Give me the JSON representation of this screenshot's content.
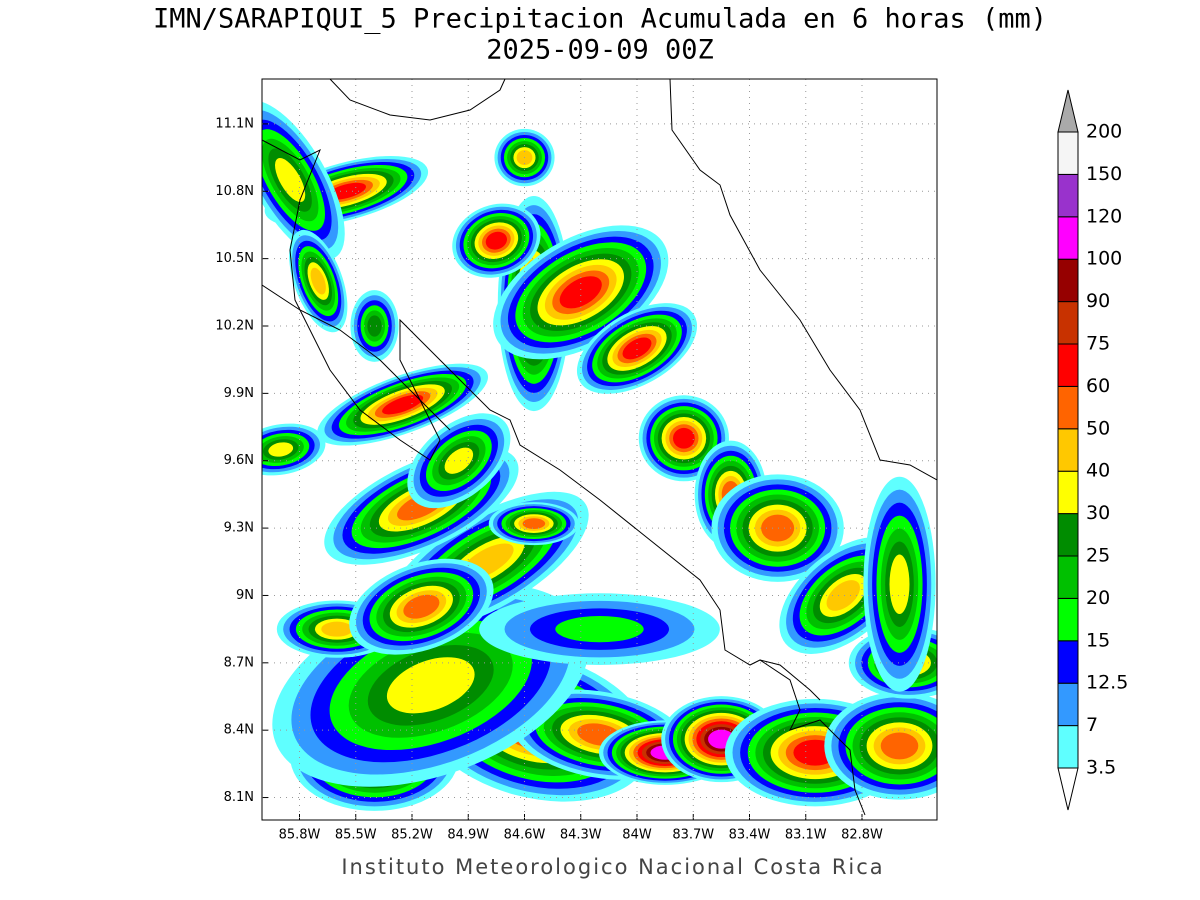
{
  "title": "IMN/SARAPIQUI_5 Precipitacion Acumulada en 6 horas (mm)",
  "subtitle": "2025-09-09 00Z",
  "map": {
    "lon_range": [
      -86.0,
      -82.4
    ],
    "lat_range": [
      8.0,
      11.3
    ],
    "lat_ticks": [
      {
        "value": 11.1,
        "label": "11.1N"
      },
      {
        "value": 10.8,
        "label": "10.8N"
      },
      {
        "value": 10.5,
        "label": "10.5N"
      },
      {
        "value": 10.2,
        "label": "10.2N"
      },
      {
        "value": 9.9,
        "label": "9.9N"
      },
      {
        "value": 9.6,
        "label": "9.6N"
      },
      {
        "value": 9.3,
        "label": "9.3N"
      },
      {
        "value": 9,
        "label": "9N"
      },
      {
        "value": 8.7,
        "label": "8.7N"
      },
      {
        "value": 8.4,
        "label": "8.4N"
      },
      {
        "value": 8.1,
        "label": "8.1N"
      }
    ],
    "lon_ticks": [
      {
        "value": -85.8,
        "label": "85.8W"
      },
      {
        "value": -85.5,
        "label": "85.5W"
      },
      {
        "value": -85.2,
        "label": "85.2W"
      },
      {
        "value": -84.9,
        "label": "84.9W"
      },
      {
        "value": -84.6,
        "label": "84.6W"
      },
      {
        "value": -84.3,
        "label": "84.3W"
      },
      {
        "value": -84,
        "label": "84W"
      },
      {
        "value": -83.7,
        "label": "83.7W"
      },
      {
        "value": -83.4,
        "label": "83.4W"
      },
      {
        "value": -83.1,
        "label": "83.1W"
      },
      {
        "value": -82.8,
        "label": "82.8W"
      }
    ],
    "grid": true
  },
  "colorbar": {
    "levels": [
      3.5,
      7,
      12.5,
      15,
      20,
      25,
      30,
      40,
      50,
      60,
      75,
      90,
      100,
      120,
      150,
      200
    ],
    "colors": [
      "#5fffff",
      "#3399ff",
      "#0000ff",
      "#00ff00",
      "#00c000",
      "#008c00",
      "#ffff00",
      "#ffc800",
      "#ff6400",
      "#ff0000",
      "#c83200",
      "#960000",
      "#ff00ff",
      "#9932cc",
      "#f5f5f5"
    ],
    "under_color": "#ffffff",
    "over_color": "#aaaaaa"
  },
  "footer": "Instituto Meteorologico Nacional Costa Rica"
}
